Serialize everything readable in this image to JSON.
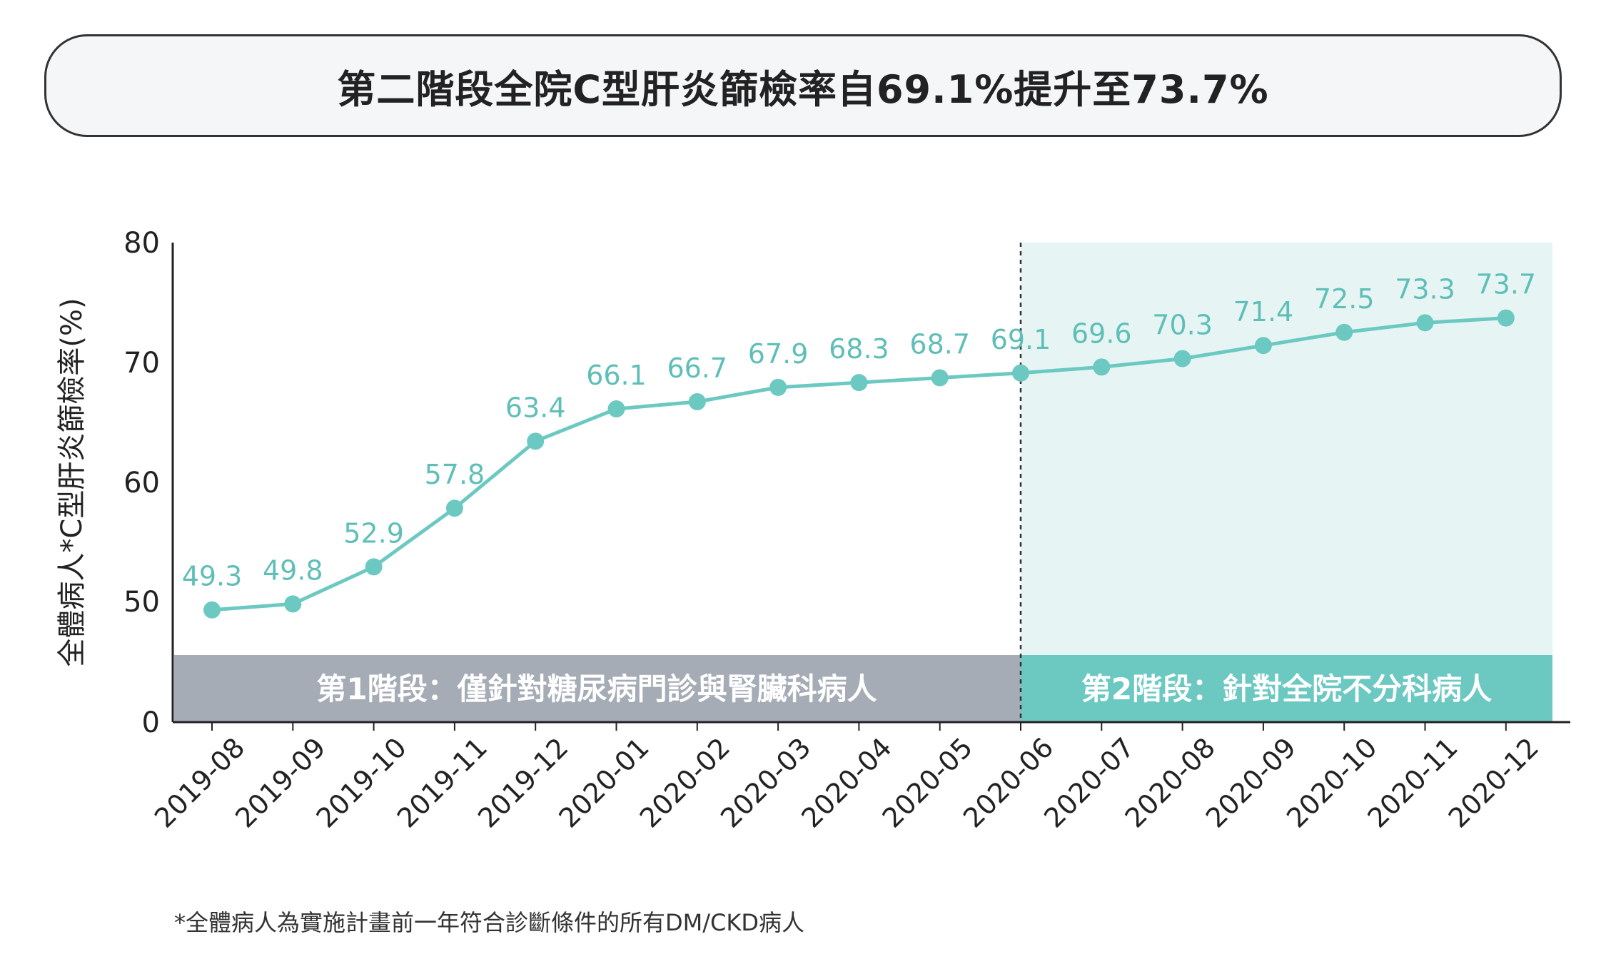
{
  "title": "第二階段全院C型肝炎篩檢率自69.1%提升至73.7%",
  "footnote": "*全體病人為實施計畫前一年符合診斷條件的所有DM/CKD病人",
  "colors": {
    "line": "#6cc9c2",
    "label": "#5fbfb8",
    "phase1_band": "#a5acb6",
    "phase2_band": "#6cc9c2",
    "phase2_bg": "#e6f5f4",
    "axis": "#222222",
    "text": "#222222",
    "band_text": "#ffffff"
  },
  "chart_data": {
    "type": "line",
    "title": "第二階段全院C型肝炎篩檢率自69.1%提升至73.7%",
    "xlabel": "",
    "ylabel": "全體病人*C型肝炎篩檢率(%)",
    "x": [
      "2019-08",
      "2019-09",
      "2019-10",
      "2019-11",
      "2019-12",
      "2020-01",
      "2020-02",
      "2020-03",
      "2020-04",
      "2020-05",
      "2020-06",
      "2020-07",
      "2020-08",
      "2020-09",
      "2020-10",
      "2020-11",
      "2020-12"
    ],
    "y_ticks": [
      "80",
      "70",
      "60",
      "50",
      "0"
    ],
    "axis_break": "y-axis broken between 0 and 50 (phase bands occupy the lower region)",
    "ylim_display": [
      50,
      80
    ],
    "grid": false,
    "series": [
      {
        "name": "全體病人*C型肝炎篩檢率(%)",
        "values": [
          49.3,
          49.8,
          52.9,
          57.8,
          63.4,
          66.1,
          66.7,
          67.9,
          68.3,
          68.7,
          69.1,
          69.6,
          70.3,
          71.4,
          72.5,
          73.3,
          73.7
        ],
        "data_labels": [
          "49.3",
          "49.8",
          "52.9",
          "57.8",
          "63.4",
          "66.1",
          "66.7",
          "67.9",
          "68.3",
          "68.7",
          "69.1",
          "69.6",
          "70.3",
          "71.4",
          "72.5",
          "73.3",
          "73.7"
        ]
      }
    ],
    "phase_divider_index": 10,
    "phases": [
      {
        "label": "第1階段：僅針對糖尿病門診與腎臟科病人",
        "from": "2019-08",
        "to": "2020-06"
      },
      {
        "label": "第2階段：針對全院不分科病人",
        "from": "2020-06",
        "to": "2020-12"
      }
    ]
  }
}
